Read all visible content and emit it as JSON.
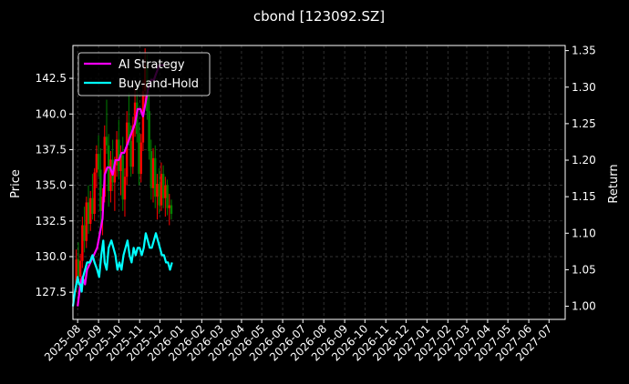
{
  "chart_data": {
    "type": "line",
    "title": "cbond [123092.SZ]",
    "xlabel": "",
    "ylabel": "Price",
    "y2label": "Return",
    "x_ticks": [
      "2025-08",
      "2025-09",
      "2025-10",
      "2025-11",
      "2025-12",
      "2026-01",
      "2026-02",
      "2026-03",
      "2026-04",
      "2026-05",
      "2026-06",
      "2026-07",
      "2026-08",
      "2026-09",
      "2026-10",
      "2026-11",
      "2026-12",
      "2027-01",
      "2027-02",
      "2027-03",
      "2027-04",
      "2027-05",
      "2027-06",
      "2027-07"
    ],
    "xlim": [
      "2025-07-25",
      "2027-07-25"
    ],
    "ylim": [
      125.6,
      144.8
    ],
    "y_ticks": [
      "127.5",
      "130.0",
      "132.5",
      "135.0",
      "137.5",
      "140.0",
      "142.5"
    ],
    "y2lim": [
      0.982,
      1.357
    ],
    "y2_ticks": [
      "1.00",
      "1.05",
      "1.10",
      "1.15",
      "1.20",
      "1.25",
      "1.30",
      "1.35"
    ],
    "grid": true,
    "legend_position": "upper-left",
    "colors": {
      "background": "#000000",
      "ai": "#ff00ff",
      "bh": "#00ffff",
      "up": "#ff0000",
      "down": "#008000",
      "grid": "#444444"
    },
    "series": [
      {
        "name": "AI Strategy",
        "axis": "return",
        "points": [
          [
            "2025-08-01",
            1.0
          ],
          [
            "2025-08-05",
            1.03
          ],
          [
            "2025-08-08",
            1.04
          ],
          [
            "2025-08-12",
            1.03
          ],
          [
            "2025-08-15",
            1.05
          ],
          [
            "2025-08-20",
            1.06
          ],
          [
            "2025-08-25",
            1.07
          ],
          [
            "2025-08-30",
            1.08
          ],
          [
            "2025-09-03",
            1.1
          ],
          [
            "2025-09-07",
            1.12
          ],
          [
            "2025-09-10",
            1.18
          ],
          [
            "2025-09-14",
            1.19
          ],
          [
            "2025-09-18",
            1.19
          ],
          [
            "2025-09-22",
            1.18
          ],
          [
            "2025-09-26",
            1.2
          ],
          [
            "2025-10-01",
            1.2
          ],
          [
            "2025-10-05",
            1.21
          ],
          [
            "2025-10-09",
            1.21
          ],
          [
            "2025-10-13",
            1.22
          ],
          [
            "2025-10-17",
            1.23
          ],
          [
            "2025-10-21",
            1.24
          ],
          [
            "2025-10-25",
            1.25
          ],
          [
            "2025-10-29",
            1.27
          ],
          [
            "2025-11-02",
            1.27
          ],
          [
            "2025-11-06",
            1.26
          ],
          [
            "2025-11-10",
            1.28
          ],
          [
            "2025-11-14",
            1.3
          ],
          [
            "2025-11-18",
            1.31
          ],
          [
            "2025-11-22",
            1.31
          ],
          [
            "2025-11-26",
            1.32
          ],
          [
            "2025-11-30",
            1.33
          ],
          [
            "2025-12-04",
            1.33
          ],
          [
            "2025-12-08",
            1.33
          ]
        ]
      },
      {
        "name": "Buy-and-Hold",
        "axis": "return",
        "points": [
          [
            "2025-07-25",
            1.0
          ],
          [
            "2025-07-28",
            1.02
          ],
          [
            "2025-08-01",
            1.04
          ],
          [
            "2025-08-03",
            1.03
          ],
          [
            "2025-08-05",
            1.03
          ],
          [
            "2025-08-07",
            1.02
          ],
          [
            "2025-08-09",
            1.04
          ],
          [
            "2025-08-12",
            1.05
          ],
          [
            "2025-08-15",
            1.06
          ],
          [
            "2025-08-19",
            1.06
          ],
          [
            "2025-08-23",
            1.07
          ],
          [
            "2025-08-26",
            1.06
          ],
          [
            "2025-08-30",
            1.05
          ],
          [
            "2025-09-02",
            1.04
          ],
          [
            "2025-09-05",
            1.07
          ],
          [
            "2025-09-08",
            1.09
          ],
          [
            "2025-09-10",
            1.06
          ],
          [
            "2025-09-13",
            1.05
          ],
          [
            "2025-09-16",
            1.08
          ],
          [
            "2025-09-20",
            1.09
          ],
          [
            "2025-09-23",
            1.08
          ],
          [
            "2025-09-26",
            1.07
          ],
          [
            "2025-09-29",
            1.05
          ],
          [
            "2025-10-02",
            1.06
          ],
          [
            "2025-10-05",
            1.05
          ],
          [
            "2025-10-08",
            1.07
          ],
          [
            "2025-10-11",
            1.08
          ],
          [
            "2025-10-14",
            1.09
          ],
          [
            "2025-10-17",
            1.07
          ],
          [
            "2025-10-20",
            1.06
          ],
          [
            "2025-10-23",
            1.08
          ],
          [
            "2025-10-26",
            1.07
          ],
          [
            "2025-10-29",
            1.08
          ],
          [
            "2025-11-01",
            1.08
          ],
          [
            "2025-11-04",
            1.07
          ],
          [
            "2025-11-07",
            1.08
          ],
          [
            "2025-11-10",
            1.1
          ],
          [
            "2025-11-13",
            1.09
          ],
          [
            "2025-11-16",
            1.08
          ],
          [
            "2025-11-19",
            1.08
          ],
          [
            "2025-11-22",
            1.09
          ],
          [
            "2025-11-25",
            1.1
          ],
          [
            "2025-11-28",
            1.09
          ],
          [
            "2025-12-01",
            1.08
          ],
          [
            "2025-12-04",
            1.07
          ],
          [
            "2025-12-07",
            1.07
          ],
          [
            "2025-12-10",
            1.06
          ],
          [
            "2025-12-13",
            1.06
          ],
          [
            "2025-12-16",
            1.05
          ],
          [
            "2025-12-19",
            1.06
          ]
        ]
      },
      {
        "name": "",
        "axis": "price",
        "kind": "candlestick",
        "ohlc": [
          [
            "2025-07-30",
            128.0,
            130.5,
            127.5,
            129.8
          ],
          [
            "2025-08-02",
            129.8,
            131.0,
            128.2,
            128.6
          ],
          [
            "2025-08-05",
            128.6,
            130.2,
            127.8,
            129.7
          ],
          [
            "2025-08-08",
            129.7,
            132.8,
            129.2,
            132.2
          ],
          [
            "2025-08-11",
            132.2,
            133.5,
            130.3,
            131.1
          ],
          [
            "2025-08-14",
            131.1,
            134.2,
            130.6,
            133.8
          ],
          [
            "2025-08-17",
            133.8,
            135.0,
            131.6,
            132.3
          ],
          [
            "2025-08-20",
            132.3,
            134.6,
            131.8,
            134.1
          ],
          [
            "2025-08-23",
            134.1,
            135.8,
            132.6,
            133.0
          ],
          [
            "2025-08-26",
            133.0,
            136.2,
            132.5,
            135.9
          ],
          [
            "2025-08-29",
            135.9,
            137.8,
            134.8,
            137.2
          ],
          [
            "2025-09-01",
            137.2,
            138.5,
            135.6,
            136.1
          ],
          [
            "2025-09-04",
            136.1,
            137.6,
            132.0,
            133.2
          ],
          [
            "2025-09-07",
            133.2,
            134.8,
            131.5,
            134.2
          ],
          [
            "2025-09-10",
            134.2,
            139.2,
            133.8,
            138.4
          ],
          [
            "2025-09-13",
            138.4,
            141.0,
            137.2,
            137.8
          ],
          [
            "2025-09-16",
            137.8,
            138.6,
            133.5,
            134.6
          ],
          [
            "2025-09-19",
            134.6,
            137.4,
            133.8,
            136.8
          ],
          [
            "2025-09-22",
            136.8,
            138.2,
            134.6,
            135.2
          ],
          [
            "2025-09-25",
            135.2,
            137.0,
            133.2,
            136.4
          ],
          [
            "2025-09-28",
            136.4,
            138.8,
            135.6,
            138.2
          ],
          [
            "2025-10-01",
            138.2,
            139.6,
            135.4,
            136.0
          ],
          [
            "2025-10-04",
            136.0,
            137.8,
            134.3,
            137.1
          ],
          [
            "2025-10-07",
            137.1,
            138.4,
            133.2,
            134.0
          ],
          [
            "2025-10-10",
            134.0,
            136.2,
            132.8,
            135.6
          ],
          [
            "2025-10-13",
            135.6,
            140.2,
            135.0,
            139.4
          ],
          [
            "2025-10-16",
            139.4,
            141.5,
            137.8,
            138.1
          ],
          [
            "2025-10-19",
            138.1,
            139.2,
            135.6,
            136.3
          ],
          [
            "2025-10-22",
            136.3,
            139.8,
            135.8,
            139.2
          ],
          [
            "2025-10-25",
            139.2,
            141.8,
            138.4,
            140.8
          ],
          [
            "2025-10-28",
            140.8,
            142.0,
            138.0,
            138.6
          ],
          [
            "2025-10-31",
            138.6,
            139.4,
            135.0,
            135.8
          ],
          [
            "2025-11-03",
            135.8,
            138.6,
            135.2,
            138.0
          ],
          [
            "2025-11-06",
            138.0,
            142.4,
            137.4,
            141.6
          ],
          [
            "2025-11-09",
            141.6,
            144.6,
            140.8,
            143.4
          ],
          [
            "2025-11-12",
            143.4,
            144.2,
            139.6,
            140.2
          ],
          [
            "2025-11-15",
            140.2,
            141.6,
            136.8,
            137.4
          ],
          [
            "2025-11-18",
            137.4,
            138.2,
            134.0,
            134.8
          ],
          [
            "2025-11-21",
            134.8,
            137.6,
            133.8,
            136.9
          ],
          [
            "2025-11-24",
            136.9,
            137.8,
            133.4,
            134.2
          ],
          [
            "2025-11-27",
            134.2,
            135.8,
            132.6,
            135.1
          ],
          [
            "2025-11-30",
            135.1,
            136.2,
            133.0,
            133.6
          ],
          [
            "2025-12-03",
            133.6,
            136.6,
            133.2,
            135.8
          ],
          [
            "2025-12-06",
            135.8,
            136.4,
            133.4,
            134.1
          ],
          [
            "2025-12-09",
            134.1,
            135.6,
            132.8,
            135.0
          ],
          [
            "2025-12-12",
            135.0,
            135.4,
            132.9,
            133.4
          ],
          [
            "2025-12-15",
            133.4,
            134.4,
            132.2,
            133.6
          ],
          [
            "2025-12-18",
            133.6,
            134.0,
            132.6,
            133.0
          ]
        ]
      }
    ]
  }
}
